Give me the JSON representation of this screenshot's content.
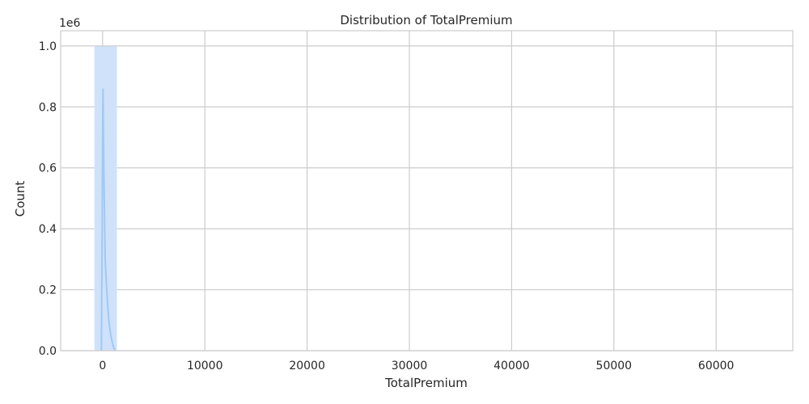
{
  "chart_data": {
    "type": "histogram",
    "title": "Distribution of TotalPremium",
    "xlabel": "TotalPremium",
    "ylabel": "Count",
    "y_offset_text": "1e6",
    "xlim": [
      -4100,
      67500
    ],
    "ylim": [
      0,
      1.05
    ],
    "xticks": [
      {
        "value": 0,
        "label": "0"
      },
      {
        "value": 10000,
        "label": "10000"
      },
      {
        "value": 20000,
        "label": "20000"
      },
      {
        "value": 30000,
        "label": "30000"
      },
      {
        "value": 40000,
        "label": "40000"
      },
      {
        "value": 50000,
        "label": "50000"
      },
      {
        "value": 60000,
        "label": "60000"
      }
    ],
    "yticks": [
      {
        "value": 0.0,
        "label": "0.0"
      },
      {
        "value": 0.2,
        "label": "0.2"
      },
      {
        "value": 0.4,
        "label": "0.4"
      },
      {
        "value": 0.6,
        "label": "0.6"
      },
      {
        "value": 0.8,
        "label": "0.8"
      },
      {
        "value": 1.0,
        "label": "1.0"
      }
    ],
    "bins": [
      {
        "x0": -800,
        "x1": 1400,
        "count": 0.998
      }
    ],
    "kde": [
      [
        -120,
        0.0
      ],
      [
        -40,
        0.4
      ],
      [
        0,
        0.7
      ],
      [
        40,
        0.86
      ],
      [
        120,
        0.6
      ],
      [
        250,
        0.3
      ],
      [
        400,
        0.2
      ],
      [
        600,
        0.1
      ],
      [
        800,
        0.05
      ],
      [
        1000,
        0.02
      ],
      [
        1200,
        0.0
      ]
    ],
    "grid": true,
    "colors": {
      "bar_fill": "#cfe2fa",
      "kde_line": "#a1c9f4",
      "grid": "#cccccc",
      "axis_text": "#262626"
    }
  }
}
